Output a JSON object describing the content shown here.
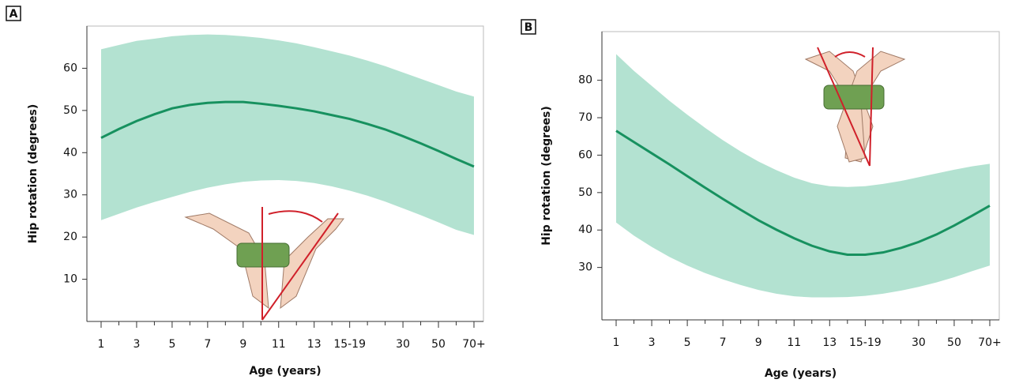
{
  "chart_data": [
    {
      "type": "line",
      "label": "A",
      "x_label": "Age (years)",
      "y_label": "Hip rotation (degrees)",
      "categories": [
        "1",
        null,
        "3",
        null,
        "5",
        null,
        "7",
        null,
        "9",
        null,
        "11",
        null,
        "13",
        null,
        "15-19",
        null,
        null,
        "30",
        null,
        "50",
        null,
        "70+"
      ],
      "values": [
        43.5,
        45.6,
        47.5,
        49.1,
        50.5,
        51.3,
        51.8,
        52,
        52,
        51.6,
        51.1,
        50.5,
        49.8,
        48.9,
        48,
        46.8,
        45.5,
        43.9,
        42.2,
        40.4,
        38.5,
        36.7
      ],
      "upper": [
        64.5,
        65.5,
        66.5,
        67,
        67.6,
        67.9,
        68,
        67.9,
        67.6,
        67.2,
        66.6,
        65.9,
        65,
        64,
        63,
        61.8,
        60.5,
        59,
        57.5,
        56,
        54.5,
        53.3
      ],
      "lower": [
        24,
        25.5,
        27,
        28.3,
        29.5,
        30.7,
        31.7,
        32.5,
        33.1,
        33.4,
        33.5,
        33.3,
        32.8,
        32,
        31,
        29.8,
        28.4,
        26.8,
        25.2,
        23.5,
        21.7,
        20.5
      ],
      "color": "#17915f",
      "band_color": "#b3e2d1",
      "ylim": [
        0,
        70
      ],
      "yticks": [
        10,
        20,
        30,
        40,
        50,
        60
      ]
    },
    {
      "type": "line",
      "label": "B",
      "x_label": "Age (years)",
      "y_label": "Hip rotation (degrees)",
      "categories": [
        "1",
        null,
        "3",
        null,
        "5",
        null,
        "7",
        null,
        "9",
        null,
        "11",
        null,
        "13",
        null,
        "15-19",
        null,
        null,
        "30",
        null,
        "50",
        null,
        "70+"
      ],
      "values": [
        66.5,
        63.5,
        60.5,
        57.5,
        54.4,
        51.3,
        48.3,
        45.4,
        42.6,
        40.1,
        37.8,
        35.8,
        34.3,
        33.4,
        33.4,
        34,
        35.2,
        36.8,
        38.8,
        41.2,
        43.8,
        46.5
      ],
      "upper": [
        87,
        82.5,
        78.5,
        74.5,
        70.8,
        67.3,
        64,
        61,
        58.3,
        56,
        54,
        52.5,
        51.7,
        51.5,
        51.7,
        52.3,
        53.1,
        54.1,
        55.1,
        56.1,
        57,
        57.7
      ],
      "lower": [
        42,
        38.5,
        35.5,
        32.8,
        30.5,
        28.5,
        26.8,
        25.3,
        24,
        23,
        22.3,
        22,
        22,
        22.1,
        22.4,
        23,
        23.8,
        24.8,
        26,
        27.4,
        29,
        30.5
      ],
      "color": "#17915f",
      "band_color": "#b3e2d1",
      "ylim": [
        16,
        93
      ],
      "yticks": [
        30,
        40,
        50,
        60,
        70,
        80
      ]
    }
  ]
}
